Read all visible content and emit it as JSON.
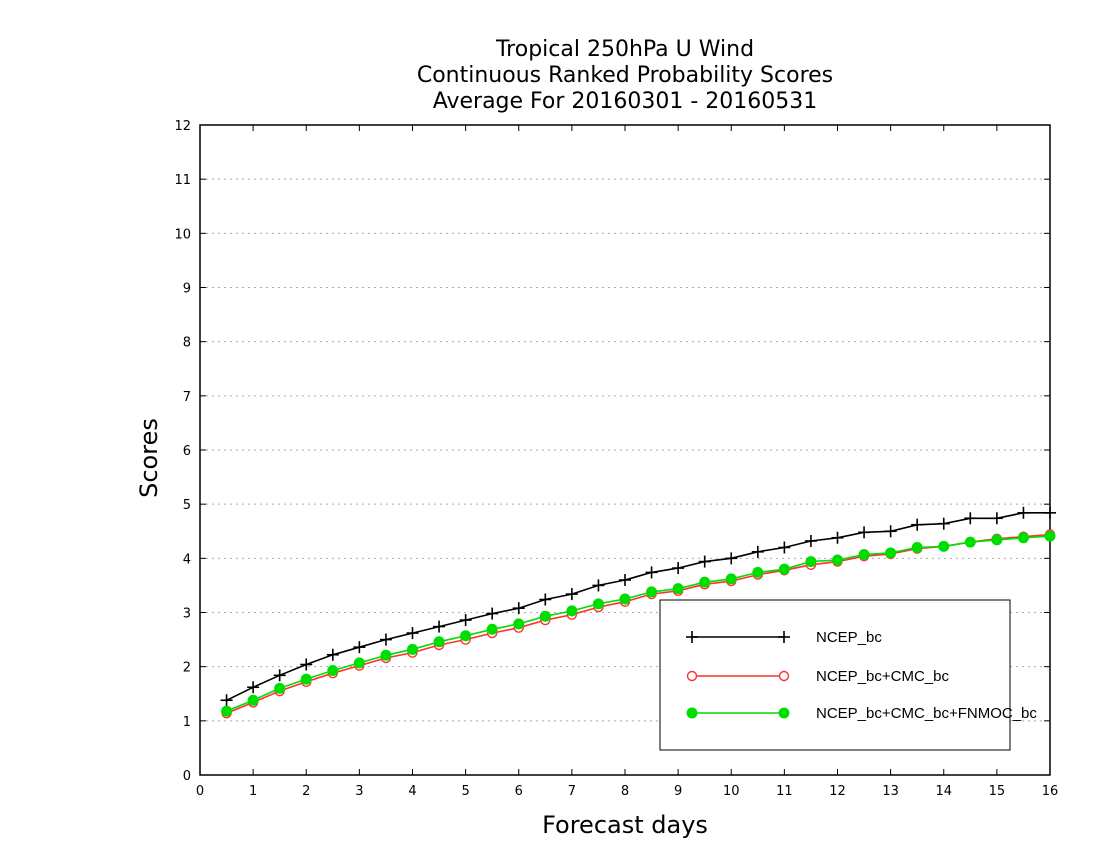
{
  "chart_data": {
    "type": "line",
    "title": [
      "Tropical 250hPa U Wind",
      "Continuous Ranked Probability Scores",
      "Average For 20160301 - 20160531"
    ],
    "xlabel": "Forecast days",
    "ylabel": "Scores",
    "xlim": [
      0,
      16
    ],
    "ylim": [
      0,
      12
    ],
    "xticks": [
      "0",
      "1",
      "2",
      "3",
      "4",
      "5",
      "6",
      "7",
      "8",
      "9",
      "10",
      "11",
      "12",
      "13",
      "14",
      "15",
      "16"
    ],
    "yticks": [
      "0",
      "1",
      "2",
      "3",
      "4",
      "5",
      "6",
      "7",
      "8",
      "9",
      "10",
      "11",
      "12"
    ],
    "grid": true,
    "legend_position": "lower-right",
    "x": [
      0.5,
      1,
      1.5,
      2,
      2.5,
      3,
      3.5,
      4,
      4.5,
      5,
      5.5,
      6,
      6.5,
      7,
      7.5,
      8,
      8.5,
      9,
      9.5,
      10,
      10.5,
      11,
      11.5,
      12,
      12.5,
      13,
      13.5,
      14,
      14.5,
      15,
      15.5,
      16
    ],
    "series": [
      {
        "name": "NCEP_bc",
        "color": "#000000",
        "marker": "plus",
        "values": [
          1.38,
          1.62,
          1.84,
          2.04,
          2.22,
          2.36,
          2.5,
          2.62,
          2.74,
          2.86,
          2.98,
          3.08,
          3.24,
          3.34,
          3.5,
          3.6,
          3.74,
          3.82,
          3.94,
          4.0,
          4.12,
          4.2,
          4.32,
          4.38,
          4.48,
          4.5,
          4.62,
          4.64,
          4.74,
          4.74,
          4.84,
          4.84
        ]
      },
      {
        "name": "NCEP_bc+CMC_bc",
        "color": "#ff3030",
        "marker": "open-circle",
        "values": [
          1.14,
          1.34,
          1.55,
          1.72,
          1.88,
          2.02,
          2.16,
          2.26,
          2.4,
          2.5,
          2.62,
          2.72,
          2.86,
          2.96,
          3.1,
          3.2,
          3.34,
          3.4,
          3.52,
          3.58,
          3.7,
          3.78,
          3.88,
          3.94,
          4.04,
          4.08,
          4.18,
          4.22,
          4.3,
          4.36,
          4.4,
          4.44
        ]
      },
      {
        "name": "NCEP_bc+CMC_bc+FNMOC_bc",
        "color": "#00dd00",
        "marker": "filled-circle",
        "values": [
          1.18,
          1.38,
          1.6,
          1.77,
          1.93,
          2.07,
          2.21,
          2.32,
          2.46,
          2.57,
          2.69,
          2.79,
          2.93,
          3.03,
          3.16,
          3.25,
          3.38,
          3.44,
          3.56,
          3.62,
          3.74,
          3.8,
          3.94,
          3.97,
          4.07,
          4.1,
          4.2,
          4.22,
          4.3,
          4.34,
          4.38,
          4.41
        ]
      }
    ]
  }
}
